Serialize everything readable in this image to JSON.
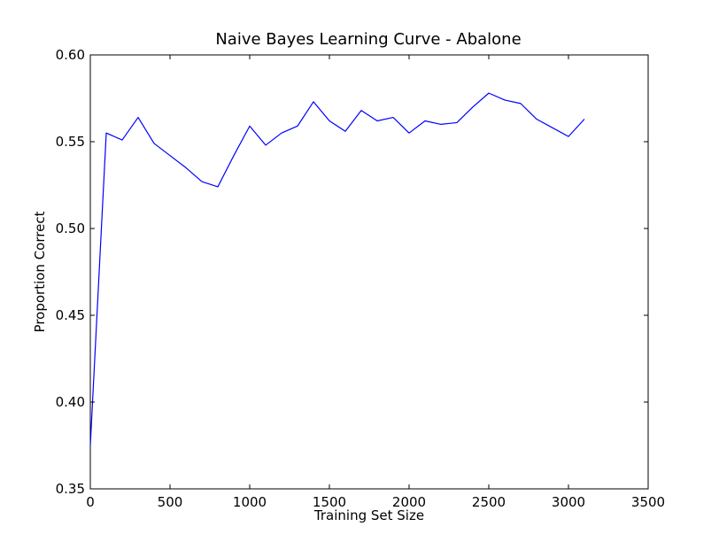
{
  "chart_data": {
    "type": "line",
    "title": "Naive Bayes Learning Curve - Abalone",
    "xlabel": "Training Set Size",
    "ylabel": "Proportion Correct",
    "xlim": [
      0,
      3500
    ],
    "ylim": [
      0.35,
      0.6
    ],
    "x_ticks": [
      "0",
      "500",
      "1000",
      "1500",
      "2000",
      "2500",
      "3000",
      "3500"
    ],
    "y_ticks": [
      "0.35",
      "0.40",
      "0.45",
      "0.50",
      "0.55",
      "0.60"
    ],
    "grid": false,
    "legend": "none",
    "series": [
      {
        "color": "#0000ff",
        "x": [
          0,
          100,
          200,
          300,
          400,
          500,
          600,
          700,
          800,
          900,
          1000,
          1100,
          1200,
          1300,
          1400,
          1500,
          1600,
          1700,
          1800,
          1900,
          2000,
          2100,
          2200,
          2300,
          2400,
          2500,
          2600,
          2700,
          2800,
          2900,
          3000,
          3100
        ],
        "y": [
          0.375,
          0.555,
          0.551,
          0.564,
          0.549,
          0.542,
          0.535,
          0.527,
          0.524,
          0.542,
          0.559,
          0.548,
          0.555,
          0.559,
          0.573,
          0.562,
          0.556,
          0.568,
          0.562,
          0.564,
          0.555,
          0.562,
          0.56,
          0.561,
          0.57,
          0.578,
          0.574,
          0.572,
          0.563,
          0.558,
          0.553,
          0.563
        ]
      }
    ]
  }
}
